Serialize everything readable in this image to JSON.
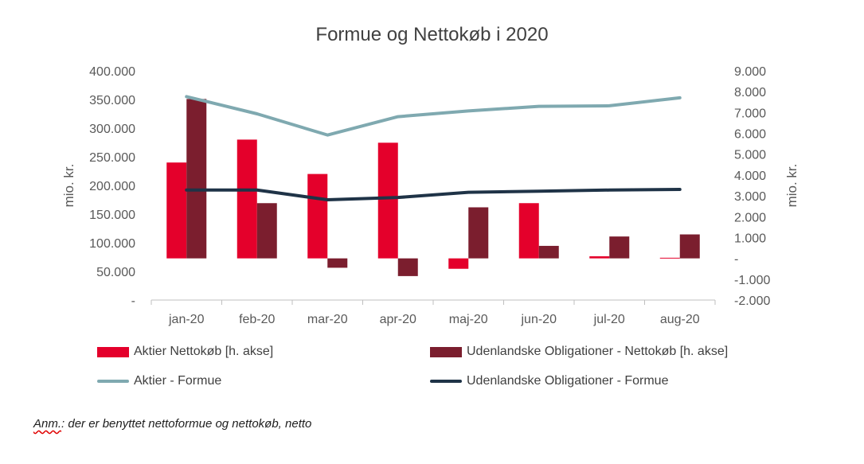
{
  "chart_data": {
    "type": "bar",
    "title": "Formue og Nettokøb i 2020",
    "categories": [
      "jan-20",
      "feb-20",
      "mar-20",
      "apr-20",
      "maj-20",
      "jun-20",
      "jul-20",
      "aug-20"
    ],
    "y_left": {
      "label": "mio. kr.",
      "ylim": [
        0,
        400000
      ],
      "ticks": [
        "-",
        "50.000",
        "100.000",
        "150.000",
        "200.000",
        "250.000",
        "300.000",
        "350.000",
        "400.000"
      ]
    },
    "y_right": {
      "label": "mio. kr.",
      "ylim": [
        -2000,
        9000
      ],
      "ticks": [
        "-2.000",
        "-1.000",
        "-",
        "1.000",
        "2.000",
        "3.000",
        "4.000",
        "5.000",
        "6.000",
        "7.000",
        "8.000",
        "9.000"
      ]
    },
    "bar_series": [
      {
        "name": "Aktier Nettokøb [h. akse]",
        "color": "#e4002b",
        "axis": "right",
        "values": [
          4600,
          5700,
          4050,
          5550,
          -500,
          2650,
          100,
          30
        ]
      },
      {
        "name": "Udenlandske Obligationer - Nettokøb [h. akse]",
        "color": "#7b1e2e",
        "axis": "right",
        "values": [
          7650,
          2650,
          -450,
          -850,
          2450,
          600,
          1050,
          1150
        ]
      }
    ],
    "line_series": [
      {
        "name": "Aktier - Formue",
        "color": "#7fa9b0",
        "axis": "left",
        "values": [
          355000,
          325000,
          288000,
          320000,
          330000,
          338000,
          339000,
          353000
        ]
      },
      {
        "name": "Udenlandske Obligationer - Formue",
        "color": "#1f3347",
        "axis": "left",
        "values": [
          192000,
          192000,
          175000,
          179000,
          188000,
          190000,
          192000,
          193000
        ]
      }
    ],
    "grid": false,
    "legend_position": "bottom"
  },
  "note": {
    "prefix": "Anm.",
    "text": ": der er benyttet nettoformue og nettokøb, netto"
  }
}
